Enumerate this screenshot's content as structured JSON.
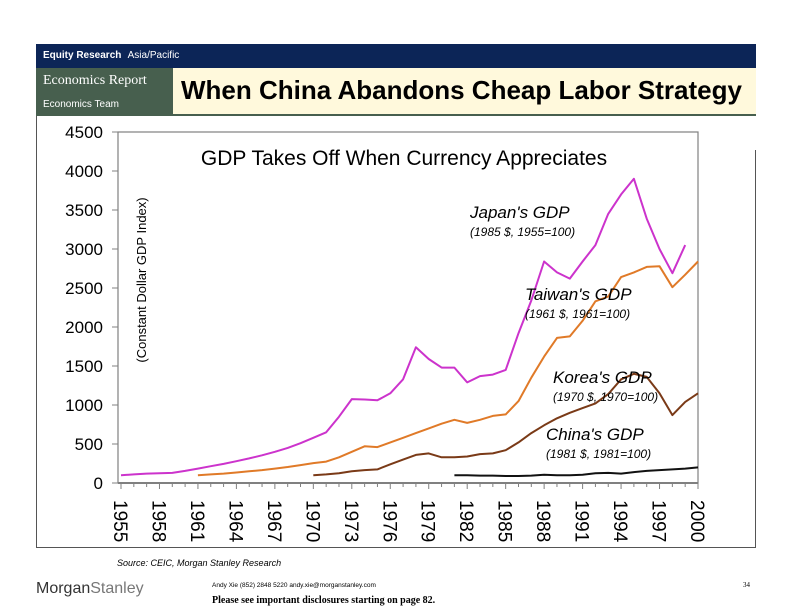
{
  "header": {
    "division": "Equity Research",
    "region": "Asia/Pacific",
    "report_type": "Economics Report",
    "team": "Economics Team",
    "title": "When China Abandons Cheap Labor Strategy"
  },
  "footer": {
    "source": "Source: CEIC, Morgan Stanley Research",
    "logo_part1": "Morgan",
    "logo_part2": "Stanley",
    "author": "Andy Xie (852) 2848 5220  andy.xie@morganstanley.com",
    "disclosure": "Please see important disclosures starting on page 82.",
    "page_number": "34"
  },
  "chart_data": {
    "type": "line",
    "title": "GDP Takes Off When Currency Appreciates",
    "xlabel": "",
    "ylabel": "(Constant Dollar GDP Index)",
    "ylim": [
      0,
      4500
    ],
    "xlim": [
      1955,
      2000
    ],
    "yticks": [
      0,
      500,
      1000,
      1500,
      2000,
      2500,
      3000,
      3500,
      4000,
      4500
    ],
    "xticks": [
      1955,
      1958,
      1961,
      1964,
      1967,
      1970,
      1973,
      1976,
      1979,
      1982,
      1985,
      1988,
      1991,
      1994,
      1997,
      2000
    ],
    "grid": false,
    "legend": "inline-labels",
    "series": [
      {
        "name": "Japan's GDP",
        "note": "(1985 $, 1955=100)",
        "color": "#cc33cc",
        "start_year": 1955,
        "values": [
          100,
          110,
          120,
          125,
          130,
          155,
          185,
          215,
          245,
          280,
          315,
          355,
          400,
          450,
          510,
          580,
          650,
          850,
          1075,
          1070,
          1060,
          1150,
          1330,
          1740,
          1590,
          1480,
          1480,
          1290,
          1370,
          1390,
          1450,
          1920,
          2340,
          2840,
          2700,
          2620,
          2840,
          3050,
          3450,
          3700,
          3900,
          3390,
          3000,
          2690,
          3050
        ]
      },
      {
        "name": "Taiwan's GDP",
        "note": "(1961 $, 1961=100)",
        "color": "#e07a28",
        "start_year": 1961,
        "values": [
          100,
          110,
          120,
          135,
          150,
          165,
          185,
          205,
          230,
          255,
          275,
          330,
          400,
          470,
          460,
          520,
          580,
          640,
          700,
          760,
          810,
          770,
          810,
          860,
          880,
          1050,
          1350,
          1620,
          1860,
          1880,
          2080,
          2330,
          2390,
          2640,
          2700,
          2770,
          2780,
          2510,
          2670,
          2840
        ]
      },
      {
        "name": "Korea's GDP",
        "note": "(1970 $, 1970=100)",
        "color": "#7a3a17",
        "start_year": 1970,
        "values": [
          100,
          110,
          125,
          150,
          165,
          175,
          240,
          300,
          360,
          380,
          330,
          330,
          340,
          370,
          380,
          420,
          520,
          640,
          740,
          830,
          900,
          960,
          1020,
          1140,
          1330,
          1400,
          1360,
          1150,
          870,
          1040,
          1150
        ]
      },
      {
        "name": "China's GDP",
        "note": "(1981 $, 1981=100)",
        "color": "#111111",
        "start_year": 1981,
        "values": [
          100,
          100,
          95,
          95,
          90,
          90,
          95,
          105,
          100,
          100,
          105,
          125,
          130,
          120,
          140,
          155,
          165,
          175,
          185,
          200
        ]
      }
    ]
  }
}
